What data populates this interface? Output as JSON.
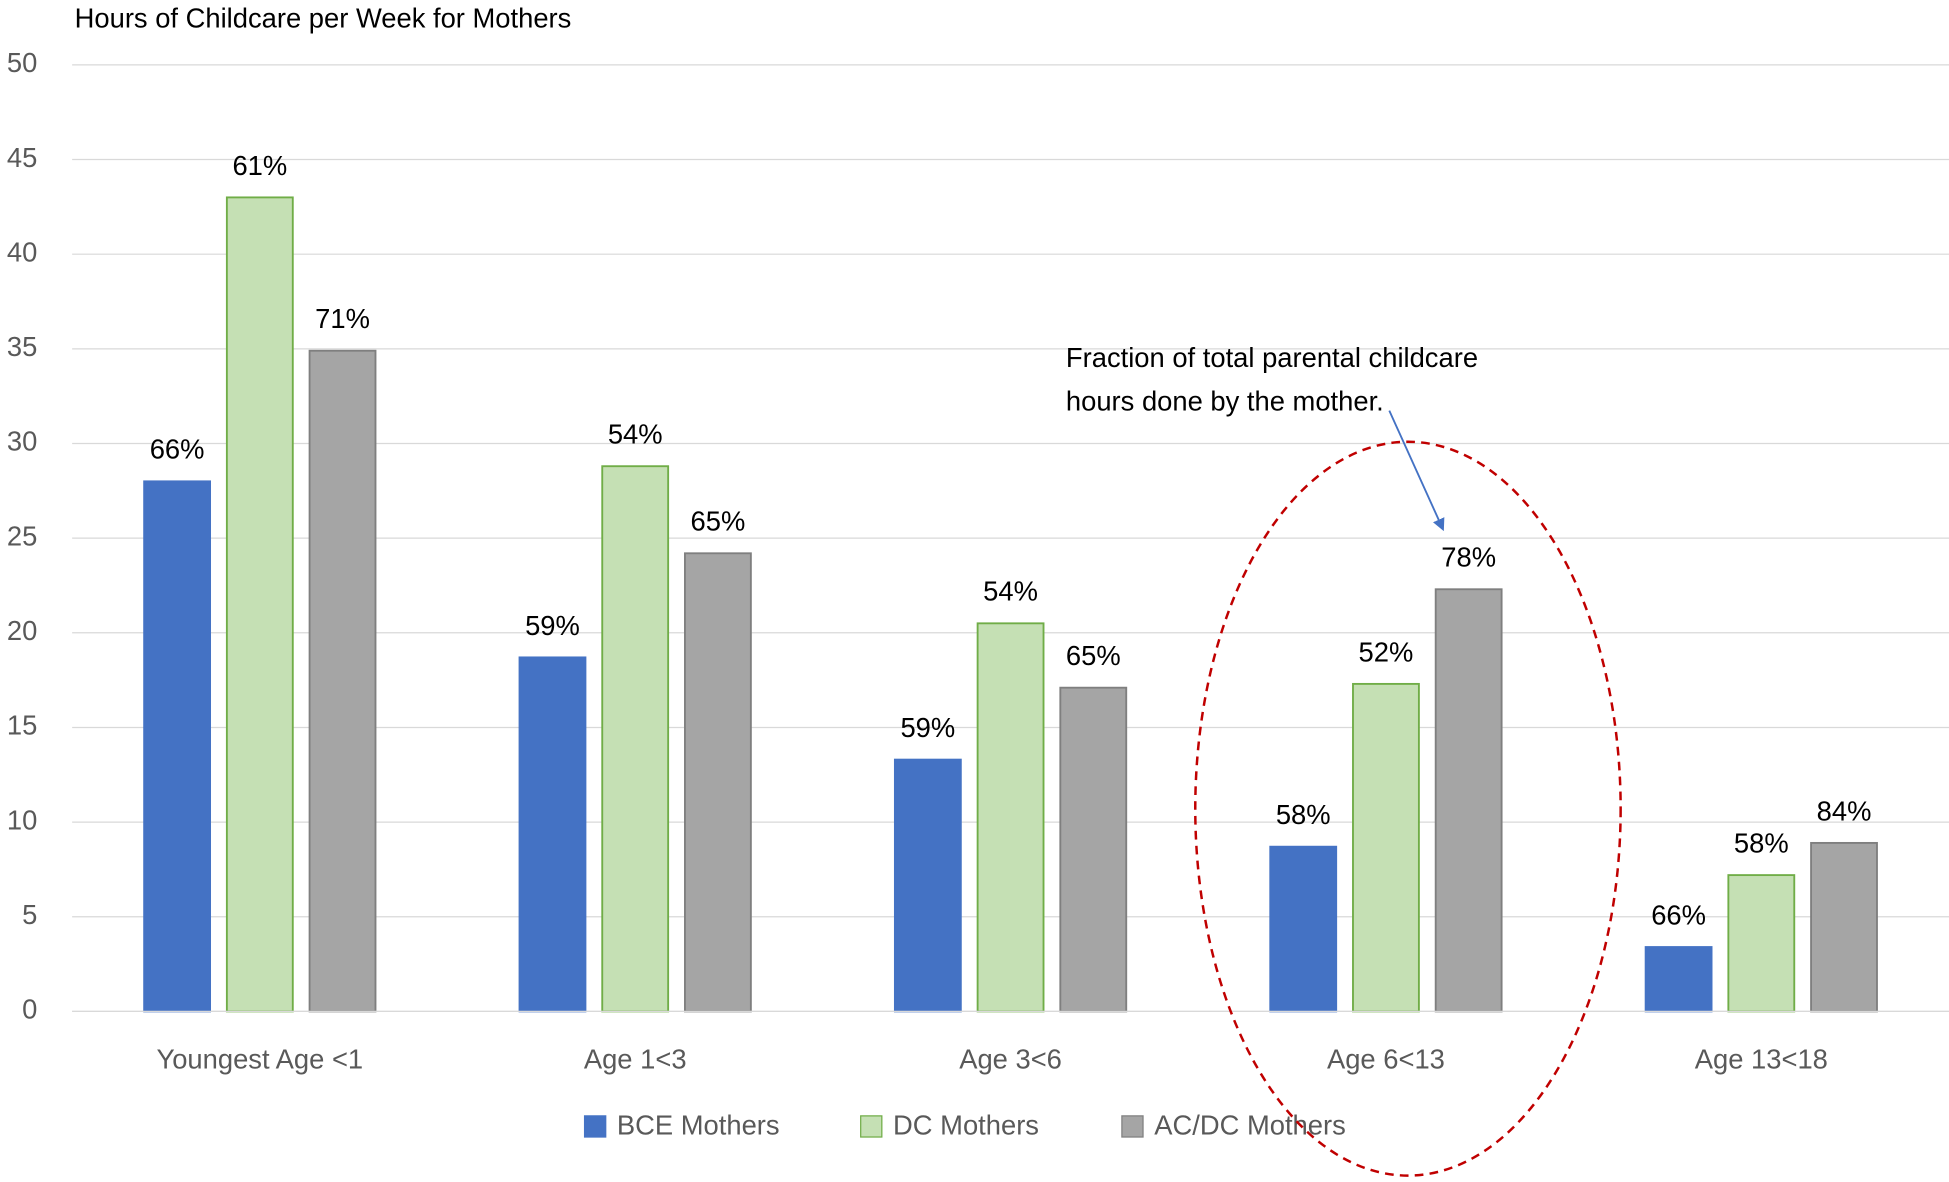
{
  "chart_data": {
    "type": "bar",
    "title": "Hours of Childcare per Week for Mothers",
    "categories": [
      "Youngest Age <1",
      "Age 1<3",
      "Age 3<6",
      "Age 6<13",
      "Age 13<18"
    ],
    "series": [
      {
        "name": "BCE Mothers",
        "color": "#4472c4",
        "edge": "#4472c4",
        "values": [
          28,
          18.7,
          13.3,
          8.7,
          3.4
        ],
        "percent_labels": [
          "66%",
          "59%",
          "59%",
          "58%",
          "66%"
        ]
      },
      {
        "name": "DC Mothers",
        "color": "#c5e0b4",
        "edge": "#70ad47",
        "values": [
          43,
          28.8,
          20.5,
          17.3,
          7.2
        ],
        "percent_labels": [
          "61%",
          "54%",
          "54%",
          "52%",
          "58%"
        ]
      },
      {
        "name": "AC/DC Mothers",
        "color": "#a5a5a5",
        "edge": "#7f7f7f",
        "values": [
          34.9,
          24.2,
          17.1,
          22.3,
          8.9
        ],
        "percent_labels": [
          "71%",
          "65%",
          "65%",
          "78%",
          "84%"
        ]
      }
    ],
    "ylim": [
      0,
      50
    ],
    "yticks": [
      0,
      5,
      10,
      15,
      20,
      25,
      30,
      35,
      40,
      45,
      50
    ],
    "grid": true,
    "legend": "bottom",
    "annotation": [
      "Fraction of total parental childcare",
      "hours done by the mother."
    ]
  }
}
